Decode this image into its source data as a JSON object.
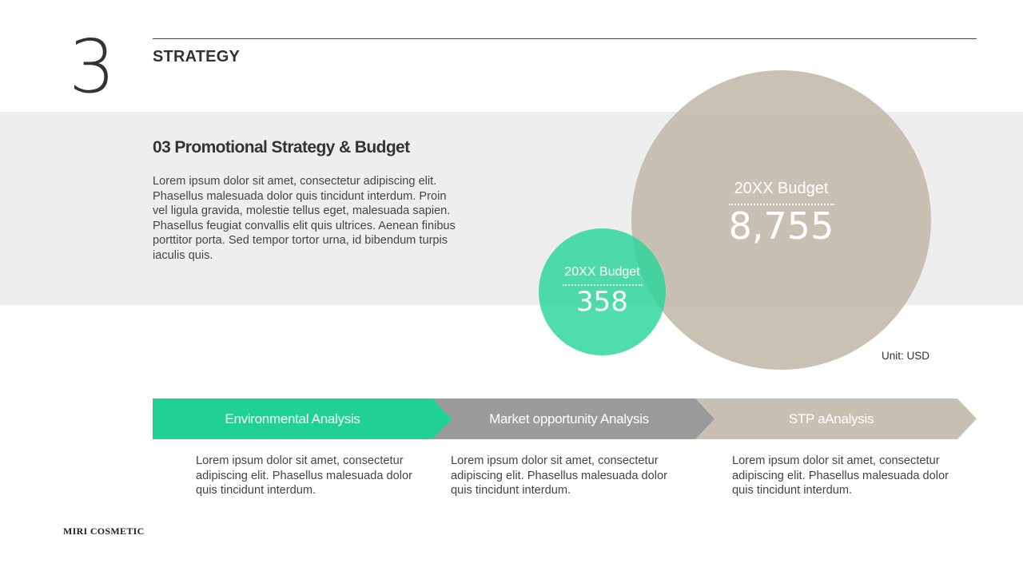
{
  "header": {
    "section_number": "3",
    "section_title": "STRATEGY"
  },
  "content": {
    "heading": "03 Promotional Strategy & Budget",
    "body": "Lorem ipsum dolor sit amet, consectetur adipiscing elit. Phasellus malesuada dolor quis tincidunt interdum. Proin vel ligula gravida, molestie tellus eget, malesuada sapien. Phasellus feugiat convallis elit quis ultrices. Aenean finibus porttitor porta. Sed tempor tortor urna, id bibendum turpis iaculis quis."
  },
  "budget": {
    "large": {
      "label": "20XX Budget",
      "value": "8,755",
      "color": "#c4bcad"
    },
    "small": {
      "label": "20XX Budget",
      "value": "358",
      "color": "#28d69b"
    },
    "unit": "Unit: USD"
  },
  "steps": [
    {
      "label": "Environmental Analysis",
      "description": "Lorem ipsum dolor sit amet, consectetur adipiscing elit. Phasellus malesuada dolor quis tincidunt interdum.",
      "color": "#21d194"
    },
    {
      "label": "Market opportunity Analysis",
      "description": "Lorem ipsum dolor sit amet, consectetur adipiscing elit. Phasellus malesuada dolor quis tincidunt interdum.",
      "color": "#9c9b9c"
    },
    {
      "label": "STP aAnalysis",
      "description": "Lorem ipsum dolor sit amet, consectetur adipiscing elit. Phasellus malesuada dolor quis tincidunt interdum.",
      "color": "#c8c1b3"
    }
  ],
  "footer": {
    "brand": "MIRI COSMETIC"
  }
}
